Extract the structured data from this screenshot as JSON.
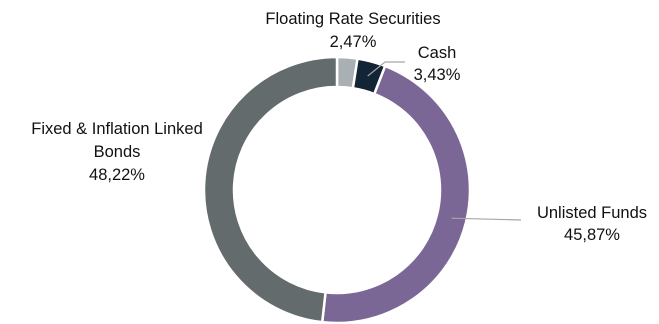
{
  "chart_data": {
    "type": "pie",
    "variant": "donut",
    "title": "",
    "categories": [
      "Floating Rate Securities",
      "Cash",
      "Unlisted Funds",
      "Fixed & Inflation Linked Bonds"
    ],
    "values": [
      2.47,
      3.43,
      45.87,
      48.22
    ],
    "value_labels": [
      "2,47%",
      "3,43%",
      "45,87%",
      "48,22%"
    ],
    "colors": [
      "#a9b0b3",
      "#132436",
      "#7b6796",
      "#646b6c"
    ],
    "label_lines": [
      [
        "Floating Rate Securities"
      ],
      [
        "Cash"
      ],
      [
        "Unlisted Funds"
      ],
      [
        "Fixed & Inflation Linked",
        "Bonds"
      ]
    ],
    "legend": "none",
    "start_angle_deg": 0,
    "direction": "clockwise"
  }
}
